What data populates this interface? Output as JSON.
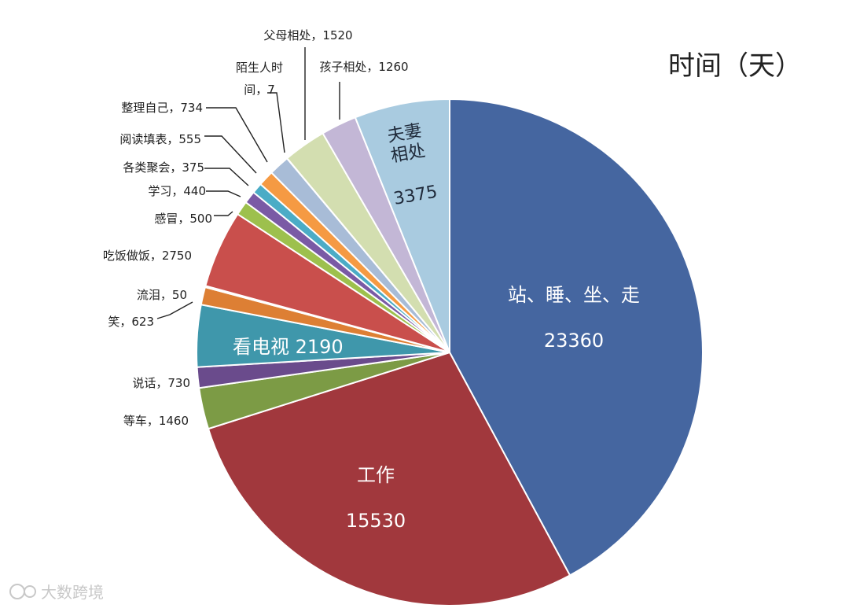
{
  "chart_data": {
    "type": "pie",
    "title": "时间（天）",
    "start_angle_deg": 0,
    "direction": "clockwise",
    "slices": [
      {
        "label": "站、睡、坐、走",
        "value": 23360,
        "color": "#4566a0"
      },
      {
        "label": "工作",
        "value": 15530,
        "color": "#a1383d"
      },
      {
        "label": "等车",
        "value": 1460,
        "color": "#7c9b45"
      },
      {
        "label": "说话",
        "value": 730,
        "color": "#6a4b8c"
      },
      {
        "label": "看电视",
        "value": 2190,
        "color": "#3f97ab"
      },
      {
        "label": "笑",
        "value": 623,
        "color": "#dd7f34"
      },
      {
        "label": "流泪",
        "value": 50,
        "color": "#4a7eb0"
      },
      {
        "label": "吃饭做饭",
        "value": 2750,
        "color": "#c94f4c"
      },
      {
        "label": "感冒",
        "value": 500,
        "color": "#9dc04d"
      },
      {
        "label": "学习",
        "value": 440,
        "color": "#7a5aa5"
      },
      {
        "label": "各类聚会",
        "value": 375,
        "color": "#4bacc6"
      },
      {
        "label": "阅读填表",
        "value": 555,
        "color": "#f59a43"
      },
      {
        "label": "整理自己",
        "value": 734,
        "color": "#a8bcd7"
      },
      {
        "label": "陌生人时间",
        "value": 7,
        "color": "#e0a8a6"
      },
      {
        "label": "父母相处",
        "value": 1520,
        "color": "#d3deb0"
      },
      {
        "label": "孩子相处",
        "value": 1260,
        "color": "#c3b7d6"
      },
      {
        "label": "夫妻相处",
        "value": 3375,
        "color": "#a9cbe0"
      }
    ],
    "labels": {
      "inside": {
        "main": "站、睡、坐、走\n23360",
        "work": "工作\n15530",
        "tv": "看电视  2190",
        "couple": "夫妻\n相处\n3375"
      },
      "outside": {
        "wait": "等车，1460",
        "talk": "说话，730",
        "laugh": "笑，623",
        "cry": "流泪，50",
        "cook": "吃饭做饭，2750",
        "cold": "感冒，500",
        "study": "学习，440",
        "party": "各类聚会，375",
        "read": "阅读填表，555",
        "groom": "整理自己，734",
        "stranger": "陌生人时\n间，7",
        "parents": "父母相处，1520",
        "kids": "孩子相处，1260"
      }
    }
  },
  "watermark": "大数跨境"
}
